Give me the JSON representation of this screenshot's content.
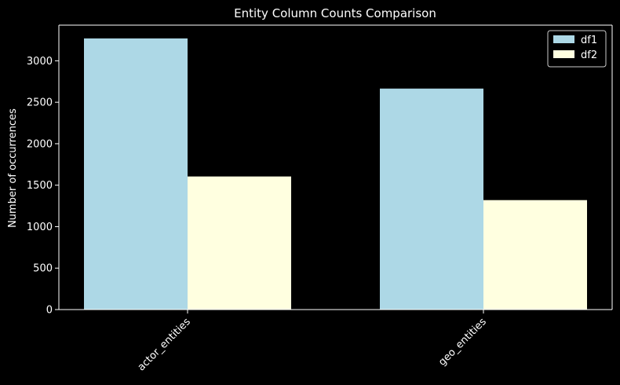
{
  "chart_data": {
    "type": "bar",
    "title": "Entity Column Counts Comparison",
    "xlabel": "",
    "ylabel": "Number of occurrences",
    "categories": [
      "actor_entities",
      "geo_entities"
    ],
    "series": [
      {
        "name": "df1",
        "values": [
          3270,
          2665
        ],
        "color": "#add8e6"
      },
      {
        "name": "df2",
        "values": [
          1605,
          1320
        ],
        "color": "#ffffe0"
      }
    ],
    "ylim": [
      0,
      3430
    ],
    "yticks": [
      0,
      500,
      1000,
      1500,
      2000,
      2500,
      3000
    ],
    "grid": false,
    "legend_position": "top-right",
    "background_color": "#000000",
    "foreground_color": "#ffffff"
  }
}
